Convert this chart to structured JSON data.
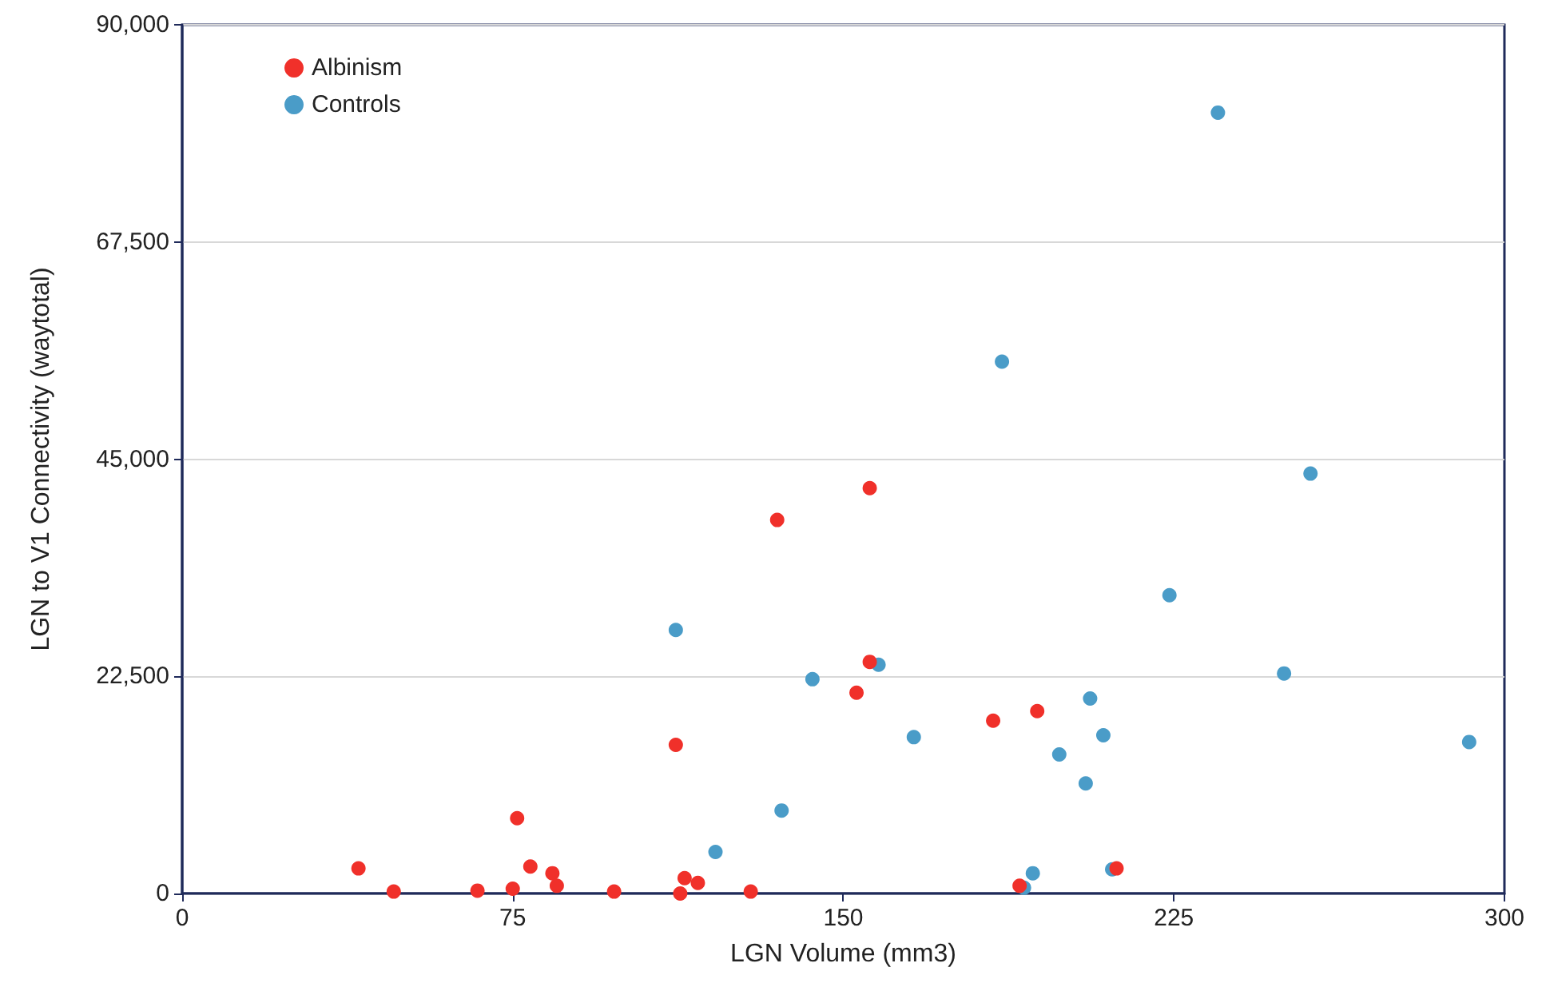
{
  "chart_data": {
    "type": "scatter",
    "xlabel": "LGN Volume (mm3)",
    "ylabel": "LGN to V1 Connectivity (waytotal)",
    "xlim": [
      0,
      300
    ],
    "xticks": [
      0,
      75,
      150,
      225,
      300
    ],
    "ylim": [
      0,
      90000
    ],
    "yticks": [
      0,
      {
        "value": 22500,
        "label": "22,500"
      },
      {
        "value": 45000,
        "label": "45,000"
      },
      {
        "value": 67500,
        "label": "67,500"
      },
      {
        "value": 90000,
        "label": "90,000"
      }
    ],
    "grid": "y",
    "legend": "top left",
    "marker": "circle",
    "series": [
      {
        "name": "Albinism",
        "color": "#f0302a",
        "x": [
          40,
          48,
          67,
          75,
          76,
          79,
          84,
          85,
          98,
          112,
          113,
          114,
          117,
          129,
          135,
          153,
          156,
          156,
          184,
          190,
          194,
          212
        ],
        "values": [
          2600,
          200,
          300,
          500,
          7800,
          2800,
          2100,
          800,
          200,
          15400,
          0,
          1600,
          1100,
          200,
          38700,
          20800,
          42000,
          24000,
          17900,
          800,
          18900,
          2600
        ]
      },
      {
        "name": "Controls",
        "color": "#4a9cc8",
        "x": [
          112,
          121,
          136,
          143,
          158,
          166,
          186,
          191,
          193,
          199,
          205,
          206,
          209,
          211,
          224,
          235,
          250,
          256,
          292
        ],
        "values": [
          27300,
          4300,
          8600,
          22200,
          23700,
          16200,
          55100,
          600,
          2100,
          14400,
          11400,
          20200,
          16400,
          2500,
          30900,
          80900,
          22800,
          43500,
          15700
        ]
      }
    ]
  }
}
